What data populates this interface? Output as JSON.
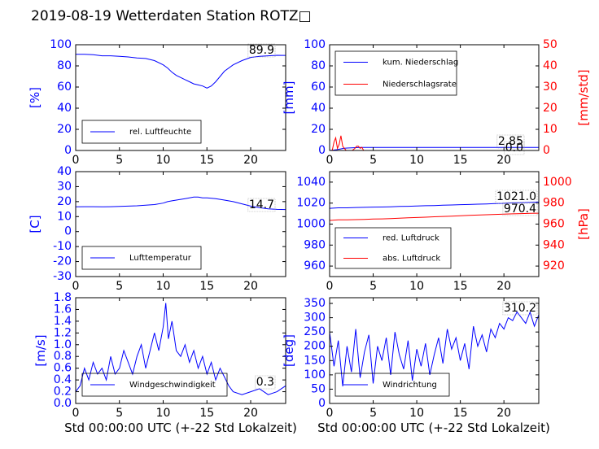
{
  "figure": {
    "title": "2019-08-19 Wetterdaten Station ROTZ□",
    "xlabel": "Std 00:00:00 UTC (+-22 Std Lokalzeit)"
  },
  "colors": {
    "left": "#0000ff",
    "right": "#ff0000",
    "frame": "#000000"
  },
  "chart_data": [
    {
      "type": "line",
      "panel": "humidity",
      "ylabel_left": "[%]",
      "xlim": [
        0,
        24
      ],
      "ylim": [
        0,
        100
      ],
      "xticks": [
        0,
        5,
        10,
        15,
        20
      ],
      "yticks": [
        0,
        20,
        40,
        60,
        80,
        100
      ],
      "legend": "bottom-left",
      "grid": false,
      "series": [
        {
          "name": "rel. Luftfeuchte",
          "axis": "left",
          "color": "#0000ff",
          "x": [
            0,
            1,
            2,
            3,
            4,
            5,
            6,
            7,
            8,
            9,
            10,
            10.5,
            11,
            11.5,
            12,
            12.5,
            13,
            13.5,
            14,
            14.5,
            15,
            15.5,
            16,
            17,
            18,
            19,
            20,
            21,
            22,
            23,
            24
          ],
          "y": [
            91,
            91,
            90.5,
            89.5,
            89.5,
            89,
            88.5,
            87.5,
            87,
            85,
            81,
            78,
            74,
            71,
            69,
            67,
            65,
            63,
            62,
            61,
            59,
            61,
            65,
            75,
            81,
            85,
            88,
            89,
            89.5,
            90,
            89.9
          ]
        }
      ],
      "annotations": [
        {
          "text": "89.9"
        }
      ]
    },
    {
      "type": "line",
      "panel": "precipitation",
      "ylabel_left": "[mm]",
      "ylabel_right": "[mm/std]",
      "xlim": [
        0,
        24
      ],
      "ylim": [
        0,
        100
      ],
      "ylim_right": [
        0,
        50
      ],
      "xticks": [
        0,
        5,
        10,
        15,
        20
      ],
      "yticks": [
        0,
        20,
        40,
        60,
        80,
        100
      ],
      "yticks_right": [
        0,
        10,
        20,
        30,
        40,
        50
      ],
      "legend": "top-left",
      "grid": false,
      "series": [
        {
          "name": "kum. Niederschlag",
          "axis": "left",
          "color": "#0000ff",
          "x": [
            0,
            0.4,
            0.8,
            1.2,
            1.6,
            2.0,
            2.5,
            3.0,
            3.5,
            4.0,
            24
          ],
          "y": [
            0,
            0.3,
            0.8,
            1.4,
            2.0,
            2.3,
            2.5,
            2.7,
            2.85,
            2.85,
            2.85
          ]
        },
        {
          "name": "Niederschlagsrate",
          "axis": "right",
          "color": "#ff0000",
          "x": [
            0,
            0.3,
            0.5,
            0.7,
            0.9,
            1.1,
            1.3,
            1.5,
            1.7,
            1.9,
            2.1,
            2.3,
            2.6,
            2.9,
            3.1,
            3.3,
            3.5,
            3.7,
            3.9,
            4.2,
            24
          ],
          "y": [
            0,
            0,
            4,
            6,
            1,
            3,
            7,
            2,
            1,
            0,
            0,
            0,
            0,
            1,
            2,
            2,
            1,
            1.5,
            0,
            0,
            0
          ]
        }
      ],
      "annotations": [
        {
          "text": "2.85"
        },
        {
          "text": "0.0"
        }
      ]
    },
    {
      "type": "line",
      "panel": "temperature",
      "ylabel_left": "[C]",
      "xlim": [
        0,
        24
      ],
      "ylim": [
        -30,
        40
      ],
      "xticks": [
        0,
        5,
        10,
        15,
        20
      ],
      "yticks": [
        -30,
        -20,
        -10,
        0,
        10,
        20,
        30,
        40
      ],
      "legend": "bottom-left",
      "grid": false,
      "series": [
        {
          "name": "Lufttemperatur",
          "axis": "left",
          "color": "#0000ff",
          "x": [
            0,
            1,
            2,
            3,
            4,
            5,
            6,
            7,
            8,
            9,
            10,
            10.5,
            11,
            11.5,
            12,
            12.5,
            13,
            13.5,
            14,
            14.5,
            15,
            16,
            17,
            18,
            19,
            20,
            21,
            22,
            23,
            24
          ],
          "y": [
            16.5,
            16.6,
            16.6,
            16.5,
            16.6,
            16.8,
            17,
            17.2,
            17.6,
            18,
            19,
            20,
            20.5,
            21,
            21.5,
            22,
            22.5,
            23,
            23,
            22.5,
            22.5,
            22,
            21,
            20,
            18.5,
            17,
            16,
            15.2,
            14.8,
            14.7
          ]
        }
      ],
      "annotations": [
        {
          "text": "14.7"
        }
      ]
    },
    {
      "type": "line",
      "panel": "pressure",
      "ylabel_right": "[hPa]",
      "xlim": [
        0,
        24
      ],
      "ylim": [
        950,
        1050
      ],
      "ylim_right": [
        910,
        1010
      ],
      "xticks": [
        0,
        5,
        10,
        15,
        20
      ],
      "yticks": [
        960,
        980,
        1000,
        1020,
        1040
      ],
      "yticks_right": [
        920,
        940,
        960,
        980,
        1000
      ],
      "legend": "bottom-left",
      "grid": false,
      "series": [
        {
          "name": "red. Luftdruck",
          "axis": "left",
          "color": "#0000ff",
          "x": [
            0,
            1,
            2,
            3,
            4,
            5,
            6,
            7,
            8,
            9,
            10,
            11,
            12,
            13,
            14,
            15,
            16,
            17,
            18,
            19,
            20,
            21,
            22,
            23,
            24
          ],
          "y": [
            1015,
            1015.5,
            1015.5,
            1015.8,
            1016,
            1016.2,
            1016.3,
            1016.5,
            1016.8,
            1017,
            1017.2,
            1017.5,
            1017.7,
            1018,
            1018.2,
            1018.5,
            1018.7,
            1019,
            1019.2,
            1019.5,
            1019.8,
            1020.2,
            1020.5,
            1020.8,
            1021.0
          ]
        },
        {
          "name": "abs. Luftdruck",
          "axis": "right",
          "color": "#ff0000",
          "x": [
            0,
            1,
            2,
            3,
            4,
            5,
            6,
            7,
            8,
            9,
            10,
            11,
            12,
            13,
            14,
            15,
            16,
            17,
            18,
            19,
            20,
            21,
            22,
            23,
            24
          ],
          "y": [
            963.5,
            964,
            964,
            964.3,
            964.5,
            964.8,
            965,
            965.3,
            965.6,
            966,
            966.3,
            966.6,
            967,
            967.3,
            967.6,
            968,
            968.3,
            968.6,
            968.9,
            969.2,
            969.5,
            969.8,
            970.0,
            970.2,
            970.4
          ]
        }
      ],
      "annotations": [
        {
          "text": "1021.0"
        },
        {
          "text": "970.4"
        }
      ]
    },
    {
      "type": "line",
      "panel": "wind-speed",
      "ylabel_left": "[m/s]",
      "xlim": [
        0,
        24
      ],
      "ylim": [
        0,
        1.8
      ],
      "xticks": [
        0,
        5,
        10,
        15,
        20
      ],
      "yticks": [
        0.0,
        0.2,
        0.4,
        0.6,
        0.8,
        1.0,
        1.2,
        1.4,
        1.6,
        1.8
      ],
      "legend": "bottom-center",
      "grid": false,
      "series": [
        {
          "name": "Windgeschwindigkeit",
          "axis": "left",
          "color": "#0000ff",
          "x": [
            0,
            0.5,
            1,
            1.5,
            2,
            2.5,
            3,
            3.5,
            4,
            4.5,
            5,
            5.5,
            6,
            6.5,
            7,
            7.5,
            8,
            8.5,
            9,
            9.5,
            10,
            10.3,
            10.6,
            11,
            11.5,
            12,
            12.5,
            13,
            13.5,
            14,
            14.5,
            15,
            15.5,
            16,
            16.5,
            17,
            17.5,
            18,
            19,
            20,
            21,
            22,
            23,
            24
          ],
          "y": [
            0.2,
            0.3,
            0.6,
            0.4,
            0.7,
            0.5,
            0.6,
            0.4,
            0.8,
            0.5,
            0.6,
            0.9,
            0.7,
            0.5,
            0.8,
            1.0,
            0.6,
            0.9,
            1.2,
            0.9,
            1.3,
            1.71,
            1.1,
            1.4,
            0.9,
            0.8,
            1.0,
            0.7,
            0.9,
            0.6,
            0.8,
            0.5,
            0.7,
            0.4,
            0.6,
            0.45,
            0.3,
            0.2,
            0.15,
            0.2,
            0.25,
            0.15,
            0.2,
            0.3
          ]
        }
      ],
      "annotations": [
        {
          "text": "0.3"
        }
      ]
    },
    {
      "type": "line",
      "panel": "wind-direction",
      "ylabel_left": "[deg]",
      "xlim": [
        0,
        24
      ],
      "ylim": [
        0,
        370
      ],
      "xticks": [
        0,
        5,
        10,
        15,
        20
      ],
      "yticks": [
        0,
        50,
        100,
        150,
        200,
        250,
        300,
        350
      ],
      "legend": "bottom-left",
      "grid": false,
      "series": [
        {
          "name": "Windrichtung",
          "axis": "left",
          "color": "#0000ff",
          "x": [
            0,
            0.5,
            1,
            1.5,
            2,
            2.5,
            3,
            3.5,
            4,
            4.5,
            5,
            5.5,
            6,
            6.5,
            7,
            7.5,
            8,
            8.5,
            9,
            9.5,
            10,
            10.5,
            11,
            11.5,
            12,
            12.5,
            13,
            13.5,
            14,
            14.5,
            15,
            15.5,
            16,
            16.5,
            17,
            17.5,
            18,
            18.5,
            19,
            19.5,
            20,
            20.5,
            21,
            21.5,
            22,
            22.5,
            23,
            23.5,
            24
          ],
          "y": [
            250,
            130,
            220,
            60,
            200,
            110,
            260,
            90,
            180,
            240,
            70,
            200,
            150,
            230,
            100,
            250,
            170,
            120,
            220,
            80,
            190,
            130,
            210,
            100,
            170,
            230,
            140,
            260,
            190,
            230,
            150,
            210,
            120,
            270,
            200,
            240,
            180,
            260,
            230,
            280,
            260,
            300,
            290,
            320,
            300,
            280,
            320,
            270,
            310.2
          ]
        }
      ],
      "annotations": [
        {
          "text": "310.2"
        }
      ]
    }
  ]
}
